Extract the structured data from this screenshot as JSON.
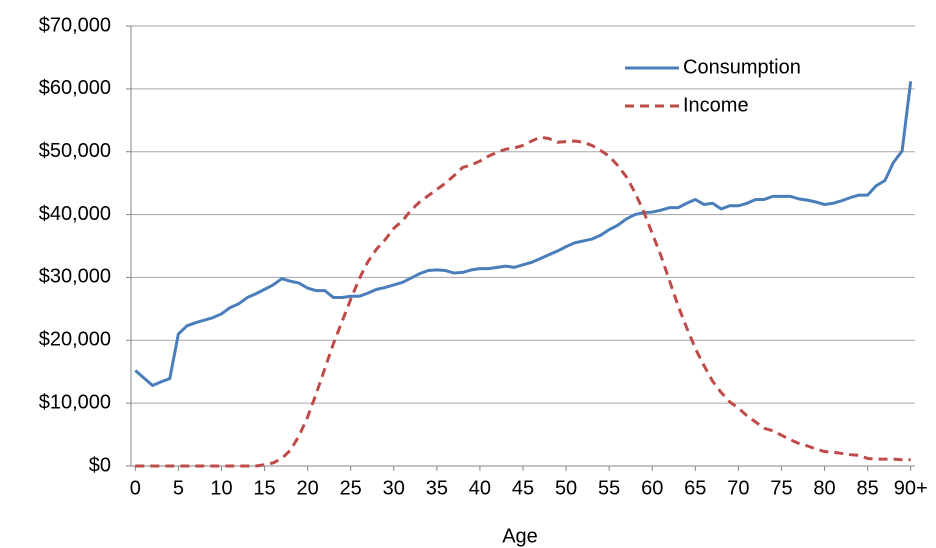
{
  "chart_data": {
    "type": "line",
    "x_label": "Age",
    "categories": [
      "0",
      null,
      null,
      null,
      null,
      "5",
      null,
      null,
      null,
      null,
      "10",
      null,
      null,
      null,
      null,
      "15",
      null,
      null,
      null,
      null,
      "20",
      null,
      null,
      null,
      null,
      "25",
      null,
      null,
      null,
      null,
      "30",
      null,
      null,
      null,
      null,
      "35",
      null,
      null,
      null,
      null,
      "40",
      null,
      null,
      null,
      null,
      "45",
      null,
      null,
      null,
      null,
      "50",
      null,
      null,
      null,
      null,
      "55",
      null,
      null,
      null,
      null,
      "60",
      null,
      null,
      null,
      null,
      "65",
      null,
      null,
      null,
      null,
      "70",
      null,
      null,
      null,
      null,
      "75",
      null,
      null,
      null,
      null,
      "80",
      null,
      null,
      null,
      null,
      "85",
      null,
      null,
      null,
      null,
      "90+"
    ],
    "series": [
      {
        "name": "Consumption",
        "color": "#4a7ebb",
        "line_style": "solid",
        "values": [
          15200,
          14000,
          12800,
          13400,
          13900,
          21000,
          22300,
          22800,
          23200,
          23600,
          24200,
          25200,
          25800,
          26800,
          27400,
          28100,
          28800,
          29800,
          29400,
          29100,
          28300,
          27900,
          27900,
          26800,
          26800,
          27000,
          27000,
          27500,
          28100,
          28400,
          28800,
          29200,
          29900,
          30600,
          31100,
          31200,
          31100,
          30700,
          30800,
          31200,
          31400,
          31400,
          31600,
          31800,
          31600,
          32000,
          32400,
          33000,
          33600,
          34200,
          34900,
          35500,
          35800,
          36100,
          36700,
          37600,
          38300,
          39300,
          40000,
          40300,
          40400,
          40700,
          41100,
          41100,
          41800,
          42400,
          41600,
          41800,
          40900,
          41400,
          41400,
          41800,
          42400,
          42400,
          42900,
          42900,
          42900,
          42500,
          42300,
          42000,
          41600,
          41800,
          42200,
          42700,
          43100,
          43100,
          44600,
          45400,
          48300,
          50100,
          61200
        ]
      },
      {
        "name": "Income",
        "color": "#be4b48",
        "line_style": "dashed",
        "values": [
          0,
          0,
          0,
          0,
          0,
          0,
          0,
          0,
          0,
          0,
          0,
          0,
          0,
          0,
          0,
          200,
          500,
          1200,
          2500,
          4800,
          7800,
          11500,
          15500,
          19500,
          23000,
          26500,
          29800,
          32500,
          34500,
          36000,
          37800,
          39000,
          40700,
          42000,
          43000,
          44000,
          45000,
          46200,
          47500,
          47900,
          48500,
          49300,
          49900,
          50400,
          50600,
          51000,
          51700,
          52300,
          52100,
          51500,
          51600,
          51700,
          51500,
          51000,
          50200,
          49300,
          47800,
          46000,
          43500,
          40500,
          37000,
          33500,
          29500,
          25500,
          22000,
          18700,
          16000,
          13500,
          11700,
          10200,
          9200,
          8000,
          7000,
          6000,
          5600,
          4900,
          4200,
          3600,
          3200,
          2700,
          2300,
          2200,
          2000,
          1800,
          1700,
          1200,
          1100,
          1100,
          1100,
          1000,
          1000
        ]
      }
    ],
    "ylim": [
      0,
      70000
    ],
    "yticks": [
      {
        "value": 0,
        "label": "$0"
      },
      {
        "value": 10000,
        "label": "$10,000"
      },
      {
        "value": 20000,
        "label": "$20,000"
      },
      {
        "value": 30000,
        "label": "$30,000"
      },
      {
        "value": 40000,
        "label": "$40,000"
      },
      {
        "value": 50000,
        "label": "$50,000"
      },
      {
        "value": 60000,
        "label": "$60,000"
      },
      {
        "value": 70000,
        "label": "$70,000"
      }
    ],
    "grid": true,
    "legend": "upper-right"
  }
}
